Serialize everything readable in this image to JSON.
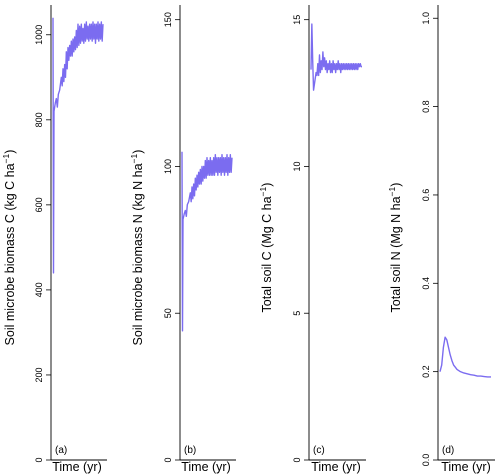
{
  "colors": {
    "series": "#7b6cf0"
  },
  "chart_data": [
    {
      "type": "line",
      "panel": "(a)",
      "xlabel": "Time (yr)",
      "ylabel": "Soil microbe biomass C (kg C ha",
      "ylabel_sup": "−1",
      "ylabel_end": ")",
      "ylim": [
        0,
        1070
      ],
      "yticks": [
        "0",
        "200",
        "400",
        "600",
        "800",
        "1000"
      ],
      "tick_values": [
        0,
        200,
        400,
        600,
        800,
        1000
      ],
      "x": [
        0,
        0.3,
        0.6,
        1,
        1.4,
        2,
        2.6,
        3.2,
        4,
        5,
        5.5,
        6,
        6.5,
        7,
        7.5,
        8,
        8.5,
        9,
        9.5,
        10,
        10.5,
        11,
        11.5,
        12,
        12.5,
        13,
        13.5,
        14,
        14.5,
        15,
        15.5,
        16,
        16.5,
        17,
        17.5,
        18,
        18.5,
        19,
        19.5,
        20,
        20.5,
        21,
        21.5,
        22,
        22.5,
        23,
        23.5,
        24,
        24.5,
        25,
        25.5,
        26,
        26.5,
        27,
        27.5,
        28,
        28.5,
        29,
        29.5,
        30
      ],
      "y": [
        1040,
        440,
        820,
        830,
        840,
        850,
        830,
        860,
        870,
        900,
        880,
        920,
        890,
        930,
        900,
        960,
        920,
        970,
        940,
        975,
        950,
        985,
        950,
        990,
        960,
        995,
        965,
        1010,
        970,
        1025,
        975,
        1020,
        980,
        1025,
        985,
        1015,
        980,
        1025,
        985,
        1030,
        990,
        1020,
        985,
        1025,
        990,
        1025,
        985,
        1030,
        990,
        1025,
        980,
        1025,
        990,
        1030,
        985,
        1025,
        990,
        1030,
        985,
        1025
      ]
    },
    {
      "type": "line",
      "panel": "(b)",
      "xlabel": "Time (yr)",
      "ylabel": "Soil microbe biomass N (kg N ha",
      "ylabel_sup": "−1",
      "ylabel_end": ")",
      "ylim": [
        0,
        155
      ],
      "yticks": [
        "0",
        "50",
        "100",
        "150"
      ],
      "tick_values": [
        0,
        50,
        100,
        150
      ],
      "x": [
        0,
        0.3,
        0.6,
        1,
        1.4,
        2,
        2.6,
        3.2,
        4,
        5,
        5.5,
        6,
        6.5,
        7,
        7.5,
        8,
        8.5,
        9,
        9.5,
        10,
        10.5,
        11,
        11.5,
        12,
        12.5,
        13,
        13.5,
        14,
        14.5,
        15,
        15.5,
        16,
        16.5,
        17,
        17.5,
        18,
        18.5,
        19,
        19.5,
        20,
        20.5,
        21,
        21.5,
        22,
        22.5,
        23,
        23.5,
        24,
        24.5,
        25,
        25.5,
        26,
        26.5,
        27,
        27.5,
        28,
        28.5,
        29,
        29.5,
        30
      ],
      "y": [
        105,
        44,
        82,
        83,
        84,
        85,
        83,
        87,
        88,
        91,
        88,
        93,
        89,
        94,
        90,
        96,
        92,
        97,
        93,
        98,
        94,
        99,
        94,
        100,
        95,
        100,
        96,
        102,
        96,
        103,
        97,
        102,
        97,
        103,
        97,
        102,
        97,
        103,
        97,
        104,
        98,
        103,
        97,
        103,
        98,
        103,
        97,
        104,
        98,
        103,
        97,
        103,
        98,
        104,
        97,
        103,
        98,
        104,
        98,
        103
      ]
    },
    {
      "type": "line",
      "panel": "(c)",
      "xlabel": "Time (yr)",
      "ylabel": "Total soil C (Mg C ha",
      "ylabel_sup": "−1",
      "ylabel_end": ")",
      "ylim": [
        0,
        15.5
      ],
      "yticks": [
        "0",
        "5",
        "10",
        "15"
      ],
      "tick_values": [
        0,
        5,
        10,
        15
      ],
      "x": [
        0,
        0.5,
        1,
        1.5,
        2,
        2.5,
        3,
        3.5,
        4,
        4.5,
        5,
        5.5,
        6,
        6.5,
        7,
        7.5,
        8,
        8.5,
        9,
        9.5,
        10,
        10.5,
        11,
        11.5,
        12,
        12.5,
        13,
        13.5,
        14,
        14.5,
        15,
        15.5,
        16,
        16.5,
        17,
        17.5,
        18,
        18.5,
        19,
        19.5,
        20,
        20.5,
        21,
        21.5,
        22,
        22.5,
        23,
        23.5,
        24,
        24.5,
        25,
        25.5,
        26,
        26.5,
        27,
        27.5,
        28,
        28.5,
        29,
        29.5,
        30
      ],
      "y": [
        13.3,
        14.85,
        13.6,
        12.6,
        12.8,
        13.0,
        13.2,
        13.1,
        13.5,
        13.1,
        13.8,
        13.2,
        13.6,
        13.3,
        13.9,
        13.4,
        13.7,
        13.3,
        13.6,
        13.2,
        13.5,
        13.3,
        13.6,
        13.2,
        13.5,
        13.2,
        13.6,
        13.3,
        13.5,
        13.2,
        13.5,
        13.3,
        13.6,
        13.3,
        13.5,
        13.2,
        13.5,
        13.3,
        13.5,
        13.3,
        13.5,
        13.3,
        13.5,
        13.3,
        13.5,
        13.3,
        13.5,
        13.3,
        13.5,
        13.3,
        13.5,
        13.3,
        13.5,
        13.3,
        13.5,
        13.3,
        13.5,
        13.4,
        13.5,
        13.4,
        13.4
      ]
    },
    {
      "type": "line",
      "panel": "(d)",
      "xlabel": "Time (yr)",
      "ylabel": "Total soil N (Mg N ha",
      "ylabel_sup": "−1",
      "ylabel_end": ")",
      "ylim": [
        0,
        1.03
      ],
      "yticks": [
        "0.0",
        "0.2",
        "0.4",
        "0.6",
        "0.8",
        "1.0"
      ],
      "tick_values": [
        0,
        0.2,
        0.4,
        0.6,
        0.8,
        1.0
      ],
      "x": [
        0,
        1,
        2,
        3,
        4,
        5,
        6,
        7,
        8,
        9,
        10,
        12,
        14,
        16,
        18,
        20,
        22,
        24,
        26,
        28,
        30
      ],
      "y": [
        0.2,
        0.215,
        0.255,
        0.278,
        0.272,
        0.255,
        0.238,
        0.225,
        0.215,
        0.21,
        0.205,
        0.2,
        0.197,
        0.195,
        0.193,
        0.192,
        0.19,
        0.19,
        0.189,
        0.188,
        0.188
      ]
    }
  ]
}
